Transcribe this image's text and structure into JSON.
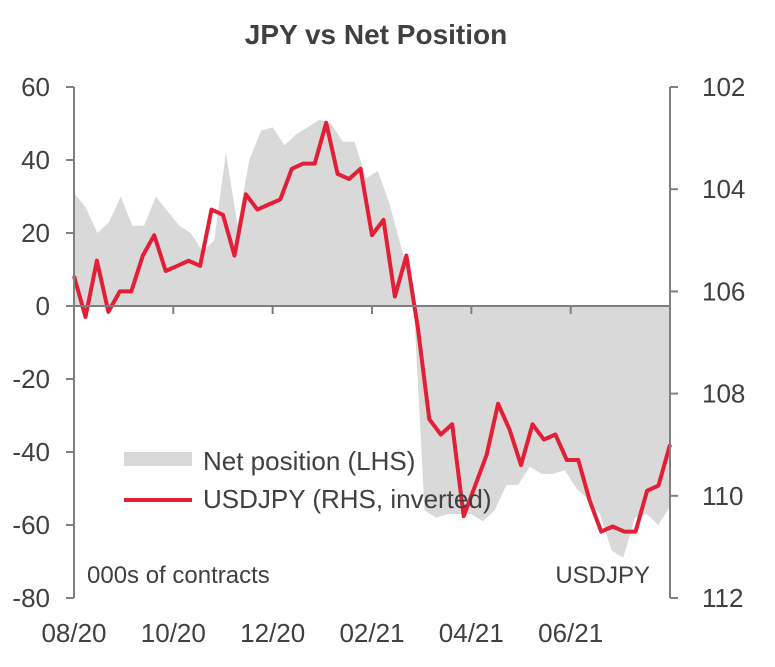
{
  "chart_data": {
    "type": "line",
    "title": "JPY vs Net Position",
    "left_axis_note": "000s of contracts",
    "right_axis_note": "USDJPY",
    "left_axis": {
      "ylim": [
        -80,
        60
      ],
      "ticks": [
        60,
        40,
        20,
        0,
        -20,
        -40,
        -60,
        -80
      ]
    },
    "right_axis": {
      "ylim": [
        102,
        112
      ],
      "inverted": true,
      "ticks": [
        102,
        104,
        106,
        108,
        110,
        112
      ]
    },
    "x_axis": {
      "ticks": [
        "08/20",
        "10/20",
        "12/20",
        "02/21",
        "04/21",
        "06/21"
      ]
    },
    "legend": {
      "placement": "center-left",
      "entries": [
        "Net position (LHS)",
        "USDJPY (RHS, inverted)"
      ]
    },
    "series": [
      {
        "name": "Net position (LHS)",
        "type": "area",
        "axis": "left",
        "color": "#d9d9d9",
        "values": [
          31,
          27,
          20,
          23,
          30,
          22,
          22,
          30,
          26,
          22,
          20,
          15,
          18,
          42,
          22,
          40,
          48,
          49,
          44,
          47,
          49,
          51,
          50,
          45,
          45,
          35,
          37,
          28,
          16,
          5,
          -56,
          -58,
          -57,
          -57,
          -57,
          -59,
          -56,
          -49,
          -49,
          -44,
          -46,
          -46,
          -45,
          -50,
          -53,
          -57,
          -67,
          -69,
          -58,
          -57,
          -60,
          -55
        ]
      },
      {
        "name": "USDJPY (RHS, inverted)",
        "type": "line",
        "axis": "right",
        "color": "#e31e37",
        "values": [
          105.7,
          106.5,
          105.4,
          106.4,
          106.0,
          106.0,
          105.3,
          104.9,
          105.6,
          105.5,
          105.4,
          105.5,
          104.4,
          104.5,
          105.3,
          104.1,
          104.4,
          104.3,
          104.2,
          103.6,
          103.5,
          103.5,
          102.7,
          103.7,
          103.8,
          103.6,
          104.9,
          104.6,
          106.1,
          105.3,
          106.7,
          108.5,
          108.8,
          108.6,
          110.4,
          109.8,
          109.2,
          108.2,
          108.7,
          109.4,
          108.6,
          108.9,
          108.8,
          109.3,
          109.3,
          110.1,
          110.7,
          110.6,
          110.7,
          110.7,
          109.9,
          109.8,
          109.0
        ]
      }
    ]
  }
}
